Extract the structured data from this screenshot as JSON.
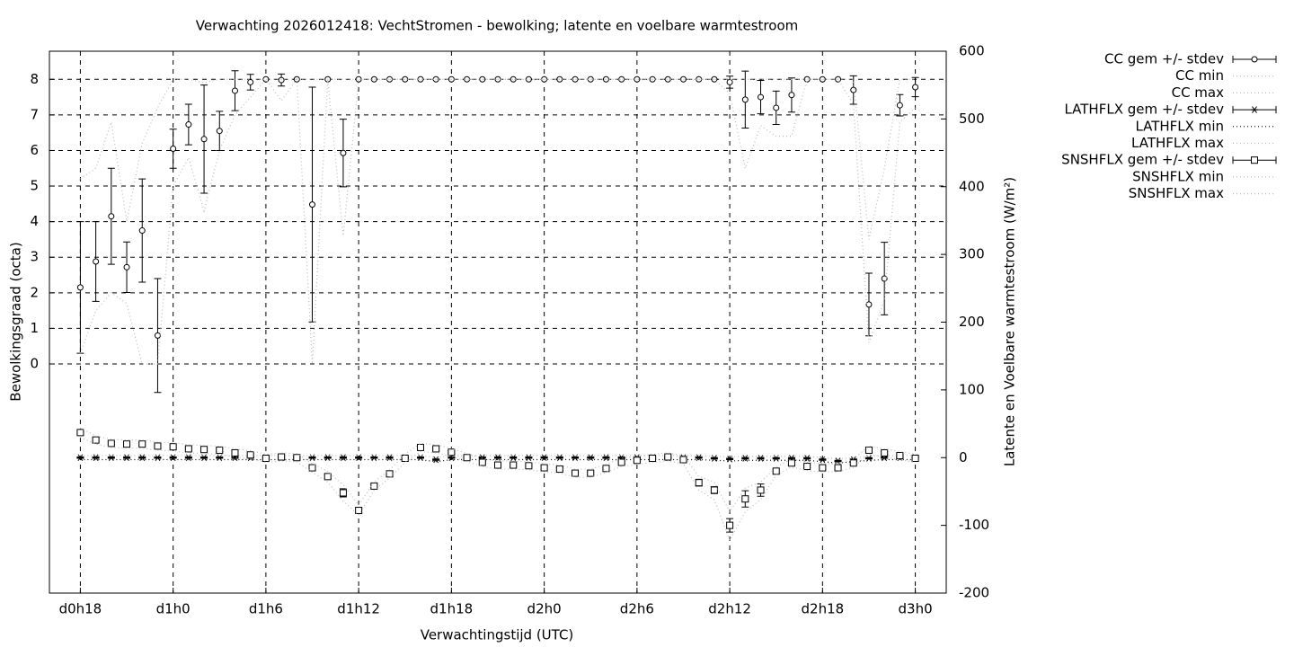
{
  "chart_data": {
    "type": "line",
    "title": "Verwachting 2026012418: VechtStromen - bewolking; latente en voelbare warmtestroom",
    "x_label": "Verwachtingstijd (UTC)",
    "y_label": "Bewolkingsgraad (octa)",
    "y2_label": "Latente en Voelbare warmtestroom (W/m²)",
    "xlim": [
      16,
      74
    ],
    "xticks": [
      {
        "value": 18,
        "label": "d0h18"
      },
      {
        "value": 24,
        "label": "d1h0"
      },
      {
        "value": 30,
        "label": "d1h6"
      },
      {
        "value": 36,
        "label": "d1h12"
      },
      {
        "value": 42,
        "label": "d1h18"
      },
      {
        "value": 48,
        "label": "d2h0"
      },
      {
        "value": 54,
        "label": "d2h6"
      },
      {
        "value": 60,
        "label": "d2h12"
      },
      {
        "value": 66,
        "label": "d2h18"
      },
      {
        "value": 72,
        "label": "d3h0"
      }
    ],
    "ylim": [
      -6.44,
      8.79
    ],
    "yticks": [
      0,
      1,
      2,
      3,
      4,
      5,
      6,
      7,
      8
    ],
    "y2lim": [
      -200,
      600
    ],
    "y2ticks": [
      -200,
      -100,
      0,
      100,
      200,
      300,
      400,
      500,
      600
    ],
    "grid": true,
    "x": [
      18,
      19,
      20,
      21,
      22,
      23,
      24,
      25,
      26,
      27,
      28,
      29,
      30,
      31,
      32,
      33,
      34,
      35,
      36,
      37,
      38,
      39,
      40,
      41,
      42,
      43,
      44,
      45,
      46,
      47,
      48,
      49,
      50,
      51,
      52,
      53,
      54,
      55,
      56,
      57,
      58,
      59,
      60,
      61,
      62,
      63,
      64,
      65,
      66,
      67,
      68,
      69,
      70,
      71,
      72
    ],
    "series": [
      {
        "name": "CC gem +/- stdev",
        "color": "#000000",
        "style": "errorbars",
        "marker": "circle",
        "values": [
          2.15,
          2.88,
          4.15,
          2.72,
          3.75,
          0.8,
          6.05,
          6.73,
          6.32,
          6.55,
          7.68,
          7.92,
          8,
          7.98,
          8,
          4.48,
          8,
          5.93,
          8,
          8,
          8,
          8,
          8,
          8,
          8,
          8,
          8,
          8,
          8,
          8,
          8,
          8,
          8,
          8,
          8,
          8,
          8,
          8,
          8,
          8,
          8,
          8,
          7.92,
          7.43,
          7.5,
          7.2,
          7.56,
          8,
          8,
          8,
          7.7,
          1.67,
          2.4,
          7.27,
          7.78
        ],
        "errors": [
          1.85,
          1.12,
          1.35,
          0.71,
          1.45,
          1.6,
          0.55,
          0.57,
          1.52,
          0.55,
          0.56,
          0.22,
          0,
          0.17,
          0,
          3.3,
          0,
          0.95,
          0,
          0,
          0,
          0,
          0,
          0,
          0,
          0,
          0,
          0,
          0,
          0,
          0,
          0,
          0,
          0,
          0,
          0,
          0,
          0,
          0,
          0,
          0,
          0,
          0.17,
          0.8,
          0.47,
          0.47,
          0.48,
          0,
          0,
          0,
          0.4,
          0.88,
          1.02,
          0.3,
          0.27
        ]
      },
      {
        "name": "CC min",
        "color": "#bbbbbb",
        "style": "dotted",
        "values": [
          0.3,
          1.5,
          2.0,
          1.7,
          0,
          0,
          5.0,
          5.8,
          4.3,
          6.0,
          7.0,
          7.5,
          8,
          7.4,
          8,
          0,
          8,
          3.6,
          8,
          8,
          8,
          8,
          8,
          8,
          8,
          8,
          8,
          8,
          8,
          8,
          8,
          8,
          8,
          8,
          8,
          8,
          8,
          8,
          8,
          8,
          8,
          8,
          7.6,
          5.5,
          6.7,
          6.4,
          6.4,
          8,
          8,
          8,
          7.3,
          0.6,
          1.8,
          6.8,
          7.2
        ]
      },
      {
        "name": "CC max",
        "color": "#bbbbbb",
        "style": "dotted",
        "values": [
          5.2,
          5.5,
          6.8,
          4.0,
          6.2,
          7.2,
          8,
          8,
          7.9,
          8,
          8,
          8,
          8,
          8,
          8,
          8,
          8,
          8,
          8,
          8,
          8,
          8,
          8,
          8,
          8,
          8,
          8,
          8,
          8,
          8,
          8,
          8,
          8,
          8,
          8,
          8,
          8,
          8,
          8,
          8,
          8,
          8,
          8,
          8,
          8,
          8,
          8,
          8,
          8,
          8,
          8,
          3.5,
          5.5,
          8,
          8
        ]
      },
      {
        "name": "LATHFLX gem +/- stdev",
        "color": "#000000",
        "style": "errorbars",
        "marker": "star",
        "axis": "y2",
        "values": [
          0,
          0,
          0,
          0,
          0,
          0,
          0,
          0,
          0,
          0,
          0,
          0,
          0,
          0,
          0,
          0,
          0,
          0,
          0,
          0,
          0,
          0,
          0,
          -3,
          0,
          0,
          0,
          0,
          0,
          0,
          0,
          0,
          0,
          0,
          0,
          0,
          0,
          0,
          0,
          0,
          0,
          -1,
          -2,
          -1,
          -1,
          -1,
          -1,
          -1,
          -3,
          -5,
          -3,
          -1,
          0,
          0,
          0
        ],
        "errors": [
          1,
          1,
          1,
          1,
          1,
          1,
          1,
          1,
          1,
          1,
          1,
          1,
          1,
          1,
          1,
          1,
          1,
          1,
          1,
          1,
          1,
          1,
          1,
          1,
          1,
          1,
          1,
          1,
          1,
          1,
          1,
          1,
          1,
          1,
          1,
          1,
          1,
          1,
          1,
          1,
          1,
          1,
          1,
          1,
          1,
          1,
          1,
          1,
          1,
          1,
          1,
          1,
          1,
          1,
          1
        ]
      },
      {
        "name": "LATHFLX min",
        "color": "#000000",
        "style": "dotted",
        "axis": "y2",
        "values": [
          -3,
          -3,
          -3,
          -3,
          -3,
          -3,
          -3,
          -3,
          -3,
          -3,
          -3,
          -3,
          -3,
          -3,
          -3,
          -3,
          -3,
          -3,
          -3,
          -3,
          -3,
          -3,
          -3,
          -6,
          -3,
          -3,
          -3,
          -3,
          -3,
          -3,
          -3,
          -3,
          -3,
          -3,
          -3,
          -3,
          -3,
          -3,
          -3,
          -3,
          -3,
          -4,
          -5,
          -4,
          -4,
          -4,
          -4,
          -4,
          -6,
          -8,
          -6,
          -4,
          -3,
          -3,
          -3
        ]
      },
      {
        "name": "LATHFLX max",
        "color": "#bbbbbb",
        "style": "dotted",
        "axis": "y2",
        "values": [
          3,
          3,
          3,
          3,
          3,
          3,
          3,
          3,
          3,
          3,
          3,
          3,
          3,
          3,
          3,
          3,
          3,
          3,
          3,
          3,
          3,
          3,
          3,
          0,
          3,
          3,
          3,
          3,
          3,
          3,
          3,
          3,
          3,
          3,
          3,
          3,
          3,
          3,
          3,
          3,
          3,
          2,
          1,
          2,
          2,
          2,
          2,
          2,
          0,
          -2,
          0,
          2,
          3,
          3,
          3
        ]
      },
      {
        "name": "SNSHFLX gem +/- stdev",
        "color": "#000000",
        "style": "errorbars",
        "marker": "square",
        "axis": "y2",
        "values": [
          37,
          26,
          21,
          20,
          20,
          17,
          16,
          13,
          12,
          11,
          7,
          4,
          -1,
          1,
          0,
          -15,
          -28,
          -52,
          -78,
          -42,
          -24,
          -1,
          15,
          13,
          8,
          0,
          -7,
          -11,
          -11,
          -12,
          -15,
          -17,
          -23,
          -23,
          -16,
          -7,
          -4,
          -1,
          1,
          -3,
          -37,
          -48,
          -100,
          -61,
          -48,
          -20,
          -8,
          -13,
          -15,
          -15,
          -8,
          11,
          7,
          3,
          -1
        ],
        "errors": [
          2,
          2,
          2,
          2,
          2,
          2,
          2,
          2,
          2,
          2,
          2,
          2,
          2,
          2,
          2,
          3,
          3,
          6,
          4,
          2,
          2,
          2,
          2,
          2,
          2,
          2,
          2,
          2,
          2,
          2,
          2,
          2,
          2,
          2,
          2,
          2,
          2,
          2,
          2,
          2,
          5,
          5,
          10,
          12,
          9,
          3,
          3,
          2,
          2,
          2,
          2,
          2,
          2,
          2,
          2
        ]
      },
      {
        "name": "SNSHFLX min",
        "color": "#bbbbbb",
        "style": "dotted",
        "axis": "y2",
        "values": [
          30,
          20,
          15,
          14,
          14,
          11,
          10,
          7,
          6,
          5,
          1,
          -2,
          -7,
          -5,
          -6,
          -22,
          -36,
          -64,
          -85,
          -48,
          -30,
          -7,
          9,
          7,
          2,
          -6,
          -13,
          -17,
          -17,
          -18,
          -21,
          -23,
          -29,
          -29,
          -22,
          -13,
          -10,
          -7,
          -5,
          -9,
          -48,
          -62,
          -122,
          -80,
          -62,
          -26,
          -14,
          -19,
          -21,
          -21,
          -14,
          5,
          1,
          -3,
          -7
        ]
      },
      {
        "name": "SNSHFLX max",
        "color": "#bbbbbb",
        "style": "dotted",
        "axis": "y2",
        "values": [
          44,
          32,
          27,
          26,
          26,
          23,
          22,
          19,
          18,
          17,
          13,
          10,
          5,
          7,
          6,
          -9,
          -20,
          -40,
          -70,
          -36,
          -18,
          5,
          21,
          19,
          14,
          6,
          -1,
          -5,
          -5,
          -6,
          -9,
          -11,
          -17,
          -17,
          -10,
          -1,
          2,
          5,
          7,
          3,
          -28,
          -36,
          -80,
          -45,
          -36,
          -14,
          -2,
          -7,
          -9,
          -9,
          -2,
          17,
          13,
          9,
          5
        ]
      }
    ]
  }
}
